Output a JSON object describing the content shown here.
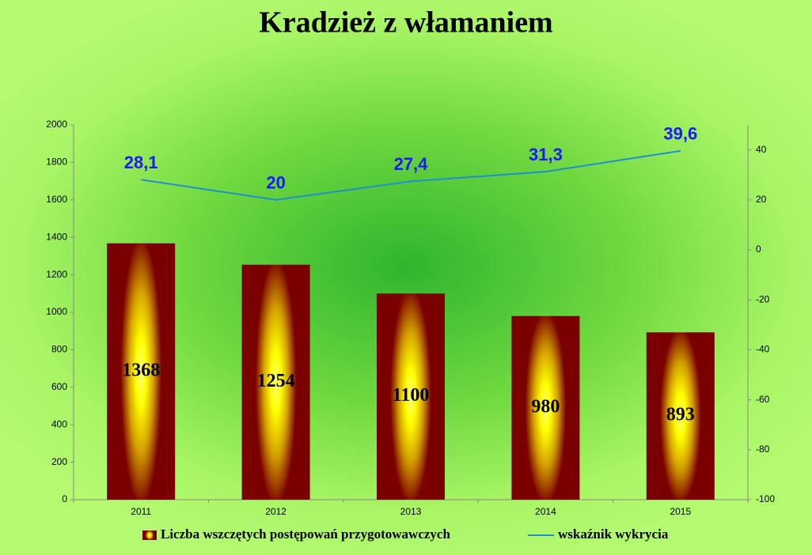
{
  "chart_data": {
    "type": "bar",
    "title": "Kradzież z włamaniem",
    "categories": [
      "2011",
      "2012",
      "2013",
      "2014",
      "2015"
    ],
    "series": [
      {
        "name": "Liczba wszczętych postępowań przygotowawczych",
        "type": "bar",
        "color": "#7a0000",
        "values": [
          1368,
          1254,
          1100,
          980,
          893
        ]
      },
      {
        "name": "wskaźnik wykrycia",
        "type": "line",
        "axis": "y2",
        "color": "#1e90d0",
        "values": [
          28.1,
          20,
          27.4,
          31.3,
          39.6
        ],
        "value_labels": [
          "28,1",
          "20",
          "27,4",
          "31,3",
          "39,6"
        ]
      }
    ],
    "ylim": [
      0,
      2000
    ],
    "yticks": [
      0,
      200,
      400,
      600,
      800,
      1000,
      1200,
      1400,
      1600,
      1800,
      2000
    ],
    "y2lim": [
      -100,
      50
    ],
    "y2ticks": [
      -100,
      -80,
      -60,
      -40,
      -20,
      0,
      20,
      40
    ],
    "grid": false
  }
}
